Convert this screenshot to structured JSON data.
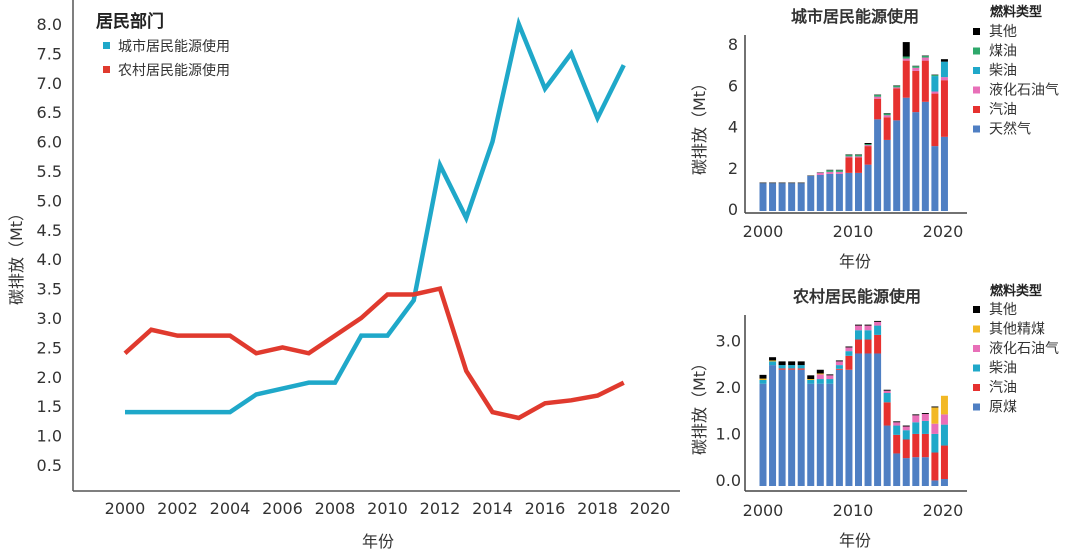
{
  "chart_data": [
    {
      "type": "line",
      "title": "",
      "legend_title": "居民部门",
      "legend_position": "top-left",
      "xlabel": "年份",
      "ylabel": "碳排放（Mt）",
      "xlim": [
        1997.5,
        2021
      ],
      "ylim": [
        0,
        8.4
      ],
      "x_ticks": [
        "2000",
        "2002",
        "2004",
        "2006",
        "2008",
        "2010",
        "2012",
        "2014",
        "2016",
        "2018",
        "2020"
      ],
      "y_ticks": [
        "0.5",
        "1.0",
        "1.5",
        "2.0",
        "2.5",
        "3.0",
        "3.5",
        "4.0",
        "4.5",
        "5.0",
        "5.5",
        "6.0",
        "6.5",
        "7.0",
        "7.5",
        "8.0"
      ],
      "x": [
        2000,
        2001,
        2002,
        2003,
        2004,
        2005,
        2006,
        2007,
        2008,
        2009,
        2010,
        2011,
        2012,
        2013,
        2014,
        2015,
        2016,
        2017,
        2018,
        2019
      ],
      "series": [
        {
          "name": "城市居民能源使用",
          "color": "#1fa8c9",
          "values": [
            1.4,
            1.4,
            1.4,
            1.4,
            1.4,
            1.7,
            1.8,
            1.9,
            1.9,
            2.7,
            2.7,
            3.3,
            5.6,
            4.7,
            6.0,
            8.0,
            6.9,
            7.5,
            6.4,
            7.3
          ]
        },
        {
          "name": "农村居民能源使用",
          "color": "#e03a2e",
          "values": [
            2.4,
            2.8,
            2.7,
            2.7,
            2.7,
            2.4,
            2.5,
            2.4,
            2.7,
            3.0,
            3.4,
            3.4,
            3.5,
            2.1,
            1.4,
            1.3,
            1.55,
            1.6,
            1.68,
            1.9
          ]
        }
      ]
    },
    {
      "type": "bar",
      "stacked": true,
      "title": "城市居民能源使用",
      "legend_title": "燃料类型",
      "legend_position": "right",
      "xlabel": "年份",
      "ylabel": "碳排放（Mt）",
      "ylim": [
        0,
        8.5
      ],
      "x_ticks": [
        "2000",
        "2010",
        "2020"
      ],
      "y_ticks": [
        "0",
        "2",
        "4",
        "6",
        "8"
      ],
      "x": [
        2000,
        2001,
        2002,
        2003,
        2004,
        2005,
        2006,
        2007,
        2008,
        2009,
        2010,
        2011,
        2012,
        2013,
        2014,
        2015,
        2016,
        2017,
        2018,
        2019,
        2020,
        2021
      ],
      "legend": [
        {
          "name": "其他",
          "color": "#000000"
        },
        {
          "name": "煤油",
          "color": "#2ea86b"
        },
        {
          "name": "柴油",
          "color": "#1fa8c9"
        },
        {
          "name": "液化石油气",
          "color": "#e86fb8"
        },
        {
          "name": "汽油",
          "color": "#e6312f"
        },
        {
          "name": "天然气",
          "color": "#4f7fc3"
        }
      ],
      "series": [
        {
          "name": "天然气",
          "color": "#4f7fc3",
          "values": [
            1.35,
            1.35,
            1.35,
            1.35,
            1.35,
            1.7,
            1.75,
            1.8,
            1.8,
            1.85,
            1.85,
            2.25,
            4.45,
            3.45,
            4.4,
            5.5,
            4.8,
            5.3,
            3.15,
            3.6
          ]
        },
        {
          "name": "汽油",
          "color": "#e6312f",
          "values": [
            0,
            0,
            0,
            0,
            0,
            0,
            0,
            0,
            0,
            0.75,
            0.75,
            0.9,
            1.0,
            1.1,
            1.55,
            1.8,
            2.0,
            2.0,
            2.55,
            2.75
          ]
        },
        {
          "name": "液化石油气",
          "color": "#e86fb8",
          "values": [
            0,
            0,
            0,
            0,
            0,
            0,
            0.1,
            0.1,
            0.1,
            0.05,
            0.05,
            0.05,
            0.1,
            0.1,
            0.05,
            0.1,
            0.15,
            0.15,
            0.1,
            0.15
          ]
        },
        {
          "name": "柴油",
          "color": "#1fa8c9",
          "values": [
            0,
            0,
            0,
            0,
            0,
            0,
            0,
            0,
            0,
            0,
            0,
            0,
            0,
            0,
            0,
            0,
            0,
            0,
            0.75,
            0.75
          ]
        },
        {
          "name": "煤油",
          "color": "#2ea86b",
          "values": [
            0,
            0,
            0,
            0,
            0,
            0,
            0,
            0.08,
            0.08,
            0.08,
            0.08,
            0.05,
            0.08,
            0.08,
            0.08,
            0.1,
            0.08,
            0.08,
            0.05,
            0
          ]
        },
        {
          "name": "其他",
          "color": "#000000",
          "values": [
            0.03,
            0.03,
            0.03,
            0.03,
            0.03,
            0.02,
            0.02,
            0.02,
            0.02,
            0.02,
            0.02,
            0.05,
            0.02,
            0.02,
            0.02,
            0.7,
            0.02,
            0.02,
            0.02,
            0.12
          ]
        }
      ],
      "bar_years": [
        2000,
        2001,
        2002,
        2003,
        2004,
        2005,
        2006,
        2007,
        2008,
        2009,
        2010,
        2011,
        2012,
        2013,
        2014,
        2015,
        2016,
        2017,
        2018,
        2019
      ]
    },
    {
      "type": "bar",
      "stacked": true,
      "title": "农村居民能源使用",
      "legend_title": "燃料类型",
      "legend_position": "right",
      "xlabel": "年份",
      "ylabel": "碳排放（Mt）",
      "ylim": [
        0,
        3.6
      ],
      "x_ticks": [
        "2000",
        "2010",
        "2020"
      ],
      "y_ticks": [
        "0.0",
        "1.0",
        "2.0",
        "3.0"
      ],
      "legend": [
        {
          "name": "其他",
          "color": "#000000"
        },
        {
          "name": "其他精煤",
          "color": "#f2b824"
        },
        {
          "name": "液化石油气",
          "color": "#e86fb8"
        },
        {
          "name": "柴油",
          "color": "#1fa8c9"
        },
        {
          "name": "汽油",
          "color": "#e6312f"
        },
        {
          "name": "原煤",
          "color": "#4f7fc3"
        }
      ],
      "bar_years": [
        2000,
        2001,
        2002,
        2003,
        2004,
        2005,
        2006,
        2007,
        2008,
        2009,
        2010,
        2011,
        2012,
        2013,
        2014,
        2015,
        2016,
        2017,
        2018,
        2019
      ],
      "series": [
        {
          "name": "原煤",
          "color": "#4f7fc3",
          "values": [
            2.2,
            2.6,
            2.5,
            2.5,
            2.5,
            2.2,
            2.2,
            2.2,
            2.5,
            2.5,
            2.85,
            2.85,
            2.85,
            1.3,
            0.7,
            0.6,
            0.62,
            0.62,
            0.12,
            0.15
          ]
        },
        {
          "name": "汽油",
          "color": "#e6312f",
          "values": [
            0,
            0,
            0.03,
            0.03,
            0.03,
            0,
            0,
            0,
            0.02,
            0.3,
            0.3,
            0.3,
            0.4,
            0.5,
            0.4,
            0.4,
            0.5,
            0.5,
            0.6,
            0.72
          ]
        },
        {
          "name": "柴油",
          "color": "#1fa8c9",
          "values": [
            0.08,
            0.08,
            0.07,
            0.07,
            0.07,
            0.08,
            0.1,
            0.1,
            0.08,
            0.1,
            0.2,
            0.2,
            0.2,
            0.2,
            0.2,
            0.2,
            0.25,
            0.28,
            0.4,
            0.45
          ]
        },
        {
          "name": "液化石油气",
          "color": "#e86fb8",
          "values": [
            0,
            0,
            0,
            0,
            0,
            0,
            0.1,
            0.08,
            0.08,
            0.08,
            0.1,
            0.1,
            0.08,
            0.05,
            0.07,
            0.08,
            0.15,
            0.15,
            0.22,
            0.22
          ]
        },
        {
          "name": "其他精煤",
          "color": "#f2b824",
          "values": [
            0.03,
            0.02,
            0,
            0,
            0,
            0.02,
            0.02,
            0,
            0,
            0,
            0,
            0,
            0,
            0,
            0,
            0,
            0,
            0,
            0.35,
            0.4
          ]
        },
        {
          "name": "其他",
          "color": "#000000",
          "values": [
            0.08,
            0.07,
            0.08,
            0.08,
            0.08,
            0.08,
            0.08,
            0.02,
            0.02,
            0.02,
            0.02,
            0.02,
            0.02,
            0.02,
            0.02,
            0.02,
            0.02,
            0.02,
            0.02,
            0
          ]
        }
      ]
    }
  ]
}
